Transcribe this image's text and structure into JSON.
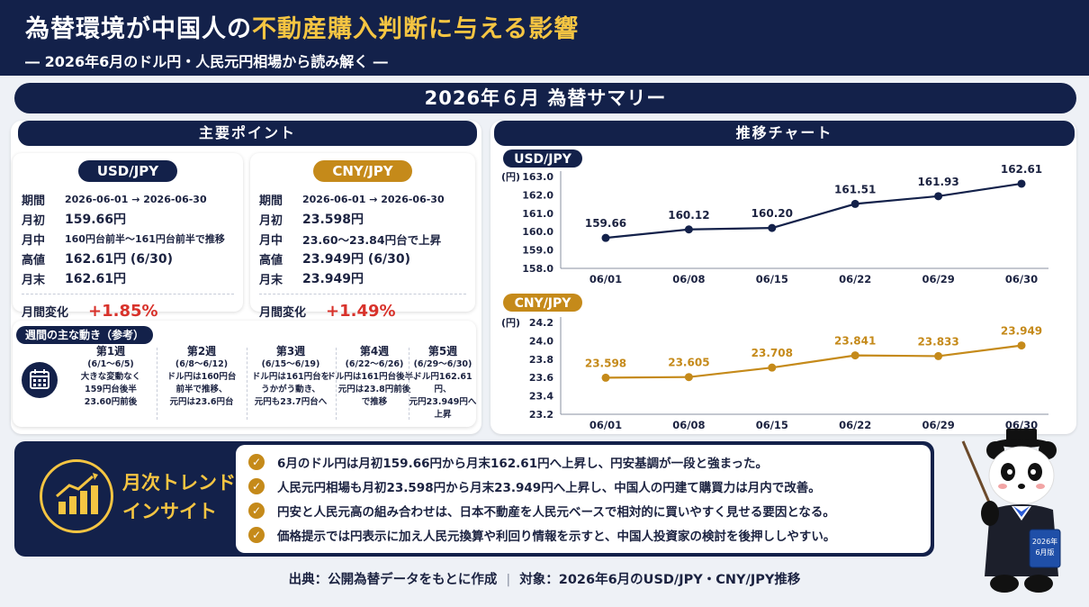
{
  "header": {
    "title_part1": "為替環境が中国人の",
    "title_part2": "不動産購入判断に与える影響",
    "subtitle": "― 2026年6月のドル円・人民元円相場から読み解く ―"
  },
  "summary_title": "2026年６月 為替サマリー",
  "points": {
    "title": "主要ポイント",
    "usd": {
      "label": "USD/JPY",
      "rows": [
        {
          "k": "期間",
          "v": "2026-06-01 → 2026-06-30"
        },
        {
          "k": "月初",
          "v": "159.66円"
        },
        {
          "k": "月中",
          "v": "160円台前半～161円台前半で推移"
        },
        {
          "k": "高値",
          "v": "162.61円 (6/30)"
        },
        {
          "k": "月末",
          "v": "162.61円"
        }
      ],
      "change_label": "月間変化",
      "change_value": "+1.85%"
    },
    "cny": {
      "label": "CNY/JPY",
      "rows": [
        {
          "k": "期間",
          "v": "2026-06-01 → 2026-06-30"
        },
        {
          "k": "月初",
          "v": "23.598円"
        },
        {
          "k": "月中",
          "v": "23.60～23.84円台で上昇"
        },
        {
          "k": "高値",
          "v": "23.949円 (6/30)"
        },
        {
          "k": "月末",
          "v": "23.949円"
        }
      ],
      "change_label": "月間変化",
      "change_value": "+1.49%"
    },
    "weekly": {
      "title": "週間の主な動き（参考）",
      "icon": "calendar-icon",
      "weeks": [
        {
          "h": "第1週",
          "r": "(6/1～6/5)",
          "d": "大きな変動なく\n159円台後半\n23.60円前後"
        },
        {
          "h": "第2週",
          "r": "(6/8～6/12)",
          "d": "ドル円は160円台\n前半で推移、\n元円は23.6円台"
        },
        {
          "h": "第3週",
          "r": "(6/15～6/19)",
          "d": "ドル円は161円台を\nうかがう動き、\n元円も23.7円台へ"
        },
        {
          "h": "第4週",
          "r": "(6/22～6/26)",
          "d": "ドル円は161円台後半、\n元円は23.8円前後\nで推移"
        },
        {
          "h": "第5週",
          "r": "(6/29～6/30)",
          "d": "ドル円162.61円、\n元円23.949円へ\n上昇"
        }
      ]
    }
  },
  "chart_panel_title": "推移チャート",
  "chart_data": [
    {
      "type": "line",
      "title": "USD/JPY",
      "ylabel": "(円)",
      "categories": [
        "06/01",
        "06/08",
        "06/15",
        "06/22",
        "06/29",
        "06/30"
      ],
      "values": [
        159.66,
        160.12,
        160.2,
        161.51,
        161.93,
        162.61
      ],
      "data_labels": [
        "159.66",
        "160.12",
        "160.20",
        "161.51",
        "161.93",
        "162.61"
      ],
      "ylim": [
        158.0,
        163.0
      ],
      "yticks": [
        "163.0",
        "162.0",
        "161.0",
        "160.0",
        "159.0",
        "158.0"
      ],
      "color": "#13214a",
      "grid": false
    },
    {
      "type": "line",
      "title": "CNY/JPY",
      "ylabel": "(円)",
      "categories": [
        "06/01",
        "06/08",
        "06/15",
        "06/22",
        "06/29",
        "06/30"
      ],
      "values": [
        23.598,
        23.605,
        23.708,
        23.841,
        23.833,
        23.949
      ],
      "data_labels": [
        "23.598",
        "23.605",
        "23.708",
        "23.841",
        "23.833",
        "23.949"
      ],
      "ylim": [
        23.2,
        24.2
      ],
      "yticks": [
        "24.2",
        "24.0",
        "23.8",
        "23.6",
        "23.4",
        "23.2"
      ],
      "color": "#c58a1a",
      "grid": false
    }
  ],
  "insight": {
    "label": "月次トレンド\nインサイト",
    "icon": "trend-chart-icon",
    "items": [
      "6月のドル円は月初159.66円から月末162.61円へ上昇し、円安基調が一段と強まった。",
      "人民元円相場も月初23.598円から月末23.949円へ上昇し、中国人の円建て購買力は月内で改善。",
      "円安と人民元高の組み合わせは、日本不動産を人民元ベースで相対的に買いやすく見せる要因となる。",
      "価格提示では円表示に加え人民元換算や利回り情報を示すと、中国人投資家の検討を後押ししやすい。"
    ]
  },
  "footer": {
    "source": "出典：公開為替データをもとに作成",
    "target": "対象：2026年6月のUSD/JPY・CNY/JPY推移"
  },
  "mascot": {
    "icon": "panda-mascot-icon",
    "book_text": "2026年\n6月版"
  },
  "colors": {
    "navy": "#13214a",
    "gold": "#c58a1a",
    "highlight": "#f5c542",
    "up": "#d8322b"
  }
}
